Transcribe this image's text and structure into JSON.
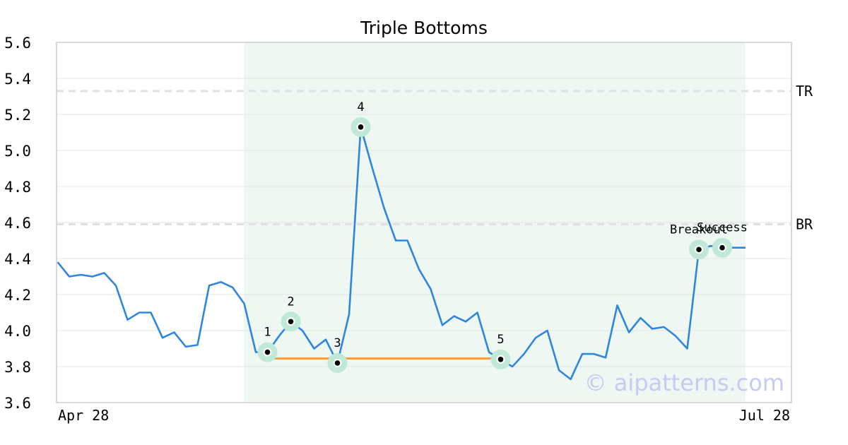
{
  "chart_data": {
    "type": "line",
    "title": "Triple Bottoms",
    "xlabel": "",
    "ylabel": "",
    "ylim": [
      3.6,
      5.6
    ],
    "yticks": [
      3.6,
      3.8,
      4.0,
      4.2,
      4.4,
      4.6,
      4.8,
      5.0,
      5.2,
      5.4,
      5.6
    ],
    "ytick_labels": [
      "3.6",
      "3.8",
      "4.0",
      "4.2",
      "4.4",
      "4.6",
      "4.8",
      "5.0",
      "5.2",
      "5.4",
      "5.6"
    ],
    "xtick_labels": [
      "Apr 28",
      "Jul 28"
    ],
    "grid": true,
    "series": [
      {
        "color": "#2f86de",
        "values": [
          4.38,
          4.3,
          4.31,
          4.3,
          4.32,
          4.25,
          4.06,
          4.1,
          4.1,
          3.96,
          3.99,
          3.91,
          3.92,
          4.25,
          4.27,
          4.24,
          4.15,
          3.88,
          3.88,
          3.97,
          4.05,
          4.0,
          3.9,
          3.95,
          3.82,
          4.09,
          5.13,
          4.9,
          4.68,
          4.5,
          4.5,
          4.34,
          4.23,
          4.03,
          4.08,
          4.05,
          4.1,
          3.88,
          3.84,
          3.8,
          3.87,
          3.96,
          4.0,
          3.78,
          3.73,
          3.87,
          3.87,
          3.85,
          4.14,
          3.99,
          4.07,
          4.01,
          4.02,
          3.97,
          3.9,
          4.45,
          4.47,
          4.46,
          4.46,
          4.46
        ]
      }
    ],
    "pattern_range": {
      "start_index": 16,
      "end_index": 59,
      "color": "#eef7f2"
    },
    "reference_lines": [
      {
        "label": "TR",
        "value": 5.33,
        "color": "#e0e0e0"
      },
      {
        "label": "BR",
        "value": 4.59,
        "color": "#e0e0e0"
      }
    ],
    "support_line": {
      "start_index": 18,
      "end_index": 38,
      "value": 3.845,
      "color": "#f0a04b"
    },
    "annotations": [
      {
        "label": "1",
        "index": 18,
        "value": 3.88,
        "placement": "above"
      },
      {
        "label": "2",
        "index": 20,
        "value": 4.05,
        "placement": "above"
      },
      {
        "label": "3",
        "index": 24,
        "value": 3.82,
        "placement": "above"
      },
      {
        "label": "4",
        "index": 26,
        "value": 5.13,
        "placement": "above"
      },
      {
        "label": "5",
        "index": 38,
        "value": 3.84,
        "placement": "above"
      },
      {
        "label": "Breakout",
        "index": 55,
        "value": 4.45,
        "placement": "above"
      },
      {
        "label": "Success",
        "index": 57,
        "value": 4.46,
        "placement": "above"
      }
    ],
    "marker_color": "#bfe8d6",
    "watermark": "© aipatterns.com",
    "watermark_color": "#c9c9f5"
  }
}
